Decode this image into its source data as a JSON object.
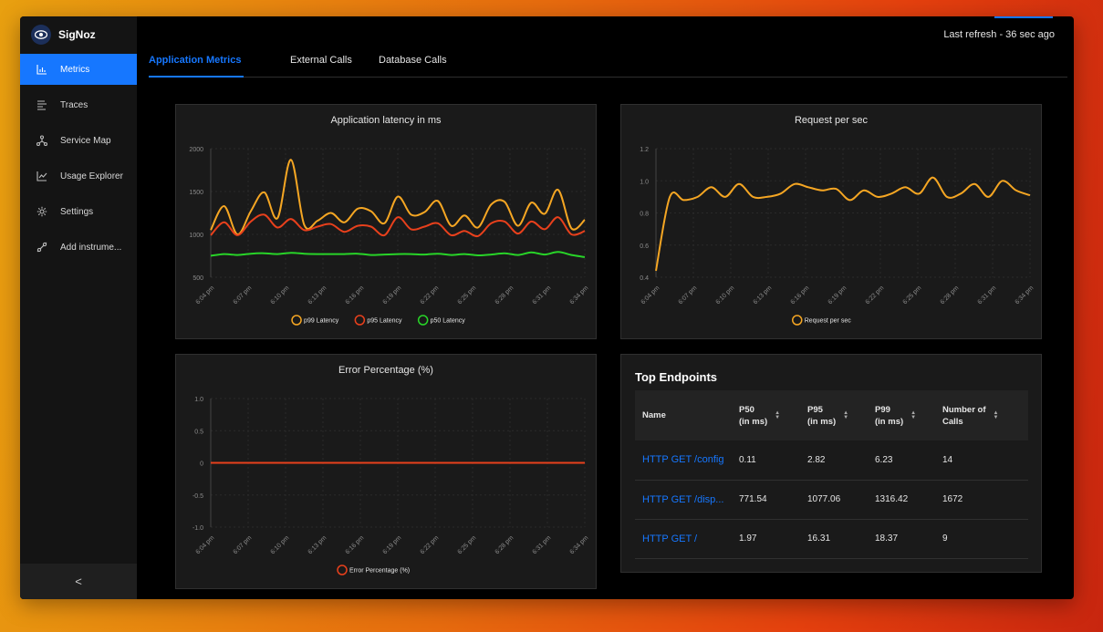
{
  "app": {
    "name": "SigNoz"
  },
  "sidebar": {
    "items": [
      {
        "label": "Metrics",
        "icon": "bar-chart-icon",
        "active": true
      },
      {
        "label": "Traces",
        "icon": "traces-icon"
      },
      {
        "label": "Service Map",
        "icon": "service-map-icon"
      },
      {
        "label": "Usage Explorer",
        "icon": "line-chart-icon"
      },
      {
        "label": "Settings",
        "icon": "gear-icon"
      },
      {
        "label": "Add instrume...",
        "icon": "api-icon"
      }
    ],
    "collapse_glyph": "<"
  },
  "header": {
    "last_refresh": "Last refresh - 36 sec ago"
  },
  "tabs": [
    {
      "label": "Application Metrics",
      "active": true
    },
    {
      "label": "External Calls"
    },
    {
      "label": "Database Calls"
    }
  ],
  "x_ticks": [
    "6:04 pm",
    "6:07 pm",
    "6:10 pm",
    "6:13 pm",
    "6:16 pm",
    "6:19 pm",
    "6:22 pm",
    "6:25 pm",
    "6:28 pm",
    "6:31 pm",
    "6:34 pm"
  ],
  "chart_data": [
    {
      "type": "line",
      "title": "Application latency in ms",
      "ylim": [
        500,
        2000
      ],
      "y_ticks": [
        "2000",
        "1500",
        "1000",
        "500"
      ],
      "series": [
        {
          "name": "p99 Latency",
          "color": "#f5a623",
          "values": [
            1050,
            1330,
            1000,
            1270,
            1490,
            1190,
            1870,
            1110,
            1160,
            1250,
            1140,
            1300,
            1270,
            1130,
            1440,
            1230,
            1260,
            1390,
            1100,
            1220,
            1080,
            1350,
            1380,
            1100,
            1370,
            1240,
            1520,
            1070,
            1170
          ]
        },
        {
          "name": "p95 Latency",
          "color": "#e8401c",
          "values": [
            990,
            1140,
            990,
            1150,
            1230,
            1080,
            1180,
            1050,
            1090,
            1120,
            1030,
            1100,
            1090,
            990,
            1200,
            1060,
            1090,
            1130,
            990,
            1040,
            980,
            1130,
            1150,
            1010,
            1150,
            1060,
            1200,
            1000,
            1040
          ]
        },
        {
          "name": "p50 Latency",
          "color": "#28d428",
          "values": [
            750,
            770,
            760,
            775,
            780,
            770,
            785,
            775,
            770,
            770,
            770,
            775,
            760,
            765,
            770,
            770,
            765,
            775,
            760,
            770,
            755,
            765,
            780,
            760,
            790,
            765,
            795,
            760,
            735
          ]
        }
      ]
    },
    {
      "type": "line",
      "title": "Request per sec",
      "ylim": [
        0.4,
        1.2
      ],
      "y_ticks": [
        "1.2",
        "1.0",
        "0.8",
        "0.6",
        "0.4"
      ],
      "series": [
        {
          "name": "Request per sec",
          "color": "#f5a623",
          "values": [
            0.44,
            0.9,
            0.88,
            0.9,
            0.96,
            0.9,
            0.98,
            0.9,
            0.9,
            0.92,
            0.98,
            0.96,
            0.94,
            0.95,
            0.88,
            0.94,
            0.9,
            0.92,
            0.96,
            0.92,
            1.02,
            0.9,
            0.92,
            0.98,
            0.9,
            1.0,
            0.94,
            0.91
          ]
        }
      ]
    },
    {
      "type": "line",
      "title": "Error Percentage (%)",
      "ylim": [
        -1.0,
        1.0
      ],
      "y_ticks": [
        "1.0",
        "0.5",
        "0",
        "-0.5",
        "-1.0"
      ],
      "series": [
        {
          "name": "Error Percentage (%)",
          "color": "#e8401c",
          "values": [
            0,
            0,
            0,
            0,
            0,
            0,
            0,
            0,
            0,
            0,
            0,
            0,
            0,
            0,
            0,
            0,
            0,
            0,
            0,
            0,
            0,
            0,
            0,
            0,
            0,
            0,
            0,
            0
          ]
        }
      ]
    }
  ],
  "top_endpoints": {
    "title": "Top Endpoints",
    "columns": [
      {
        "line1": "Name",
        "line2": ""
      },
      {
        "line1": "P50",
        "line2": "(in ms)"
      },
      {
        "line1": "P95",
        "line2": "(in ms)"
      },
      {
        "line1": "P99",
        "line2": "(in ms)"
      },
      {
        "line1": "Number of",
        "line2": "Calls"
      }
    ],
    "rows": [
      {
        "name": "HTTP GET /config",
        "p50": "0.11",
        "p95": "2.82",
        "p99": "6.23",
        "calls": "14"
      },
      {
        "name": "HTTP GET /disp...",
        "p50": "771.54",
        "p95": "1077.06",
        "p99": "1316.42",
        "calls": "1672"
      },
      {
        "name": "HTTP GET /",
        "p50": "1.97",
        "p95": "16.31",
        "p99": "18.37",
        "calls": "9"
      }
    ]
  }
}
